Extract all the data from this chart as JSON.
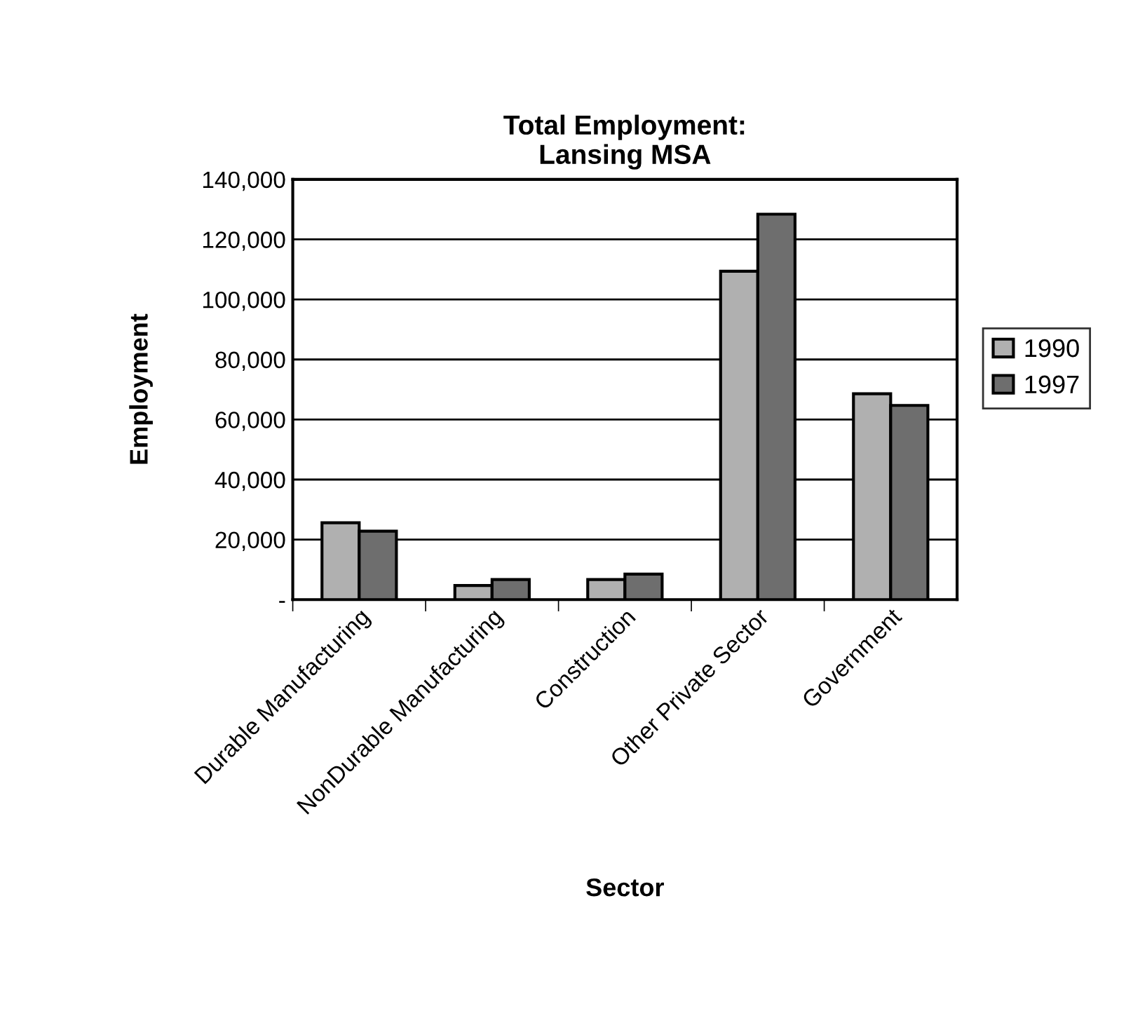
{
  "chart_data": {
    "type": "bar",
    "title": "Total Employment:\nLansing MSA",
    "xlabel": "Sector",
    "ylabel": "Employment",
    "categories": [
      "Durable Manufacturing",
      "NonDurable Manufacturing",
      "Construction",
      "Other Private Sector",
      "Government"
    ],
    "series": [
      {
        "name": "1990",
        "color": "#b0b0b0",
        "values": [
          25600,
          4700,
          6700,
          109400,
          68600
        ]
      },
      {
        "name": "1997",
        "color": "#6e6e6e",
        "values": [
          22800,
          6700,
          8500,
          128400,
          64700
        ]
      }
    ],
    "ylim": [
      0,
      140000
    ],
    "yticks": [
      {
        "value": 0,
        "label": "-"
      },
      {
        "value": 20000,
        "label": "20,000"
      },
      {
        "value": 40000,
        "label": "40,000"
      },
      {
        "value": 60000,
        "label": "60,000"
      },
      {
        "value": 80000,
        "label": "80,000"
      },
      {
        "value": 100000,
        "label": "100,000"
      },
      {
        "value": 120000,
        "label": "120,000"
      },
      {
        "value": 140000,
        "label": "140,000"
      }
    ],
    "grid": "y",
    "legend": "right"
  }
}
